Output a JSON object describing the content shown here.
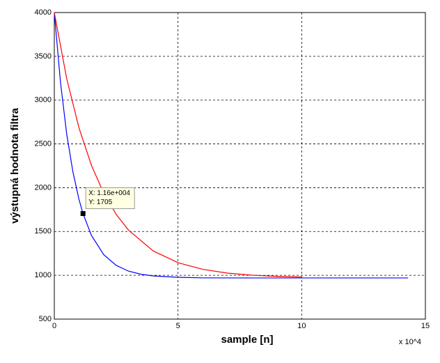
{
  "chart_data": {
    "type": "line",
    "x_label": "sample [n]",
    "y_label": "výstupná hodnota filtra",
    "x_exponent_label": "x 10^4",
    "xlim": [
      0,
      15
    ],
    "xticks": [
      0,
      5,
      10,
      15
    ],
    "ylim": [
      500,
      4000
    ],
    "yticks": [
      500,
      1000,
      1500,
      2000,
      2500,
      3000,
      3500,
      4000
    ],
    "grid": true,
    "series": [
      {
        "color": "#0000ff",
        "x": [
          0,
          0.25,
          0.5,
          0.75,
          1,
          1.16,
          1.5,
          2,
          2.5,
          3,
          3.5,
          4,
          5,
          6,
          8,
          10,
          12,
          14.3
        ],
        "values": [
          4000,
          3203,
          2616,
          2184,
          1864,
          1705,
          1456,
          1235,
          1114,
          1048,
          1012,
          993,
          977,
          971,
          970,
          970,
          970,
          970
        ]
      },
      {
        "color": "#ff0000",
        "x": [
          0,
          0.5,
          1,
          1.5,
          2,
          2.5,
          3,
          4,
          5,
          6,
          7,
          8,
          9,
          10
        ],
        "values": [
          4000,
          3247,
          2681,
          2256,
          1936,
          1696,
          1516,
          1278,
          1144,
          1068,
          1025,
          1001,
          988,
          980
        ]
      }
    ],
    "datatip": {
      "x": 1.16,
      "y": 1705,
      "label_x": "X: 1.16e+004",
      "label_y": "Y: 1705"
    }
  }
}
